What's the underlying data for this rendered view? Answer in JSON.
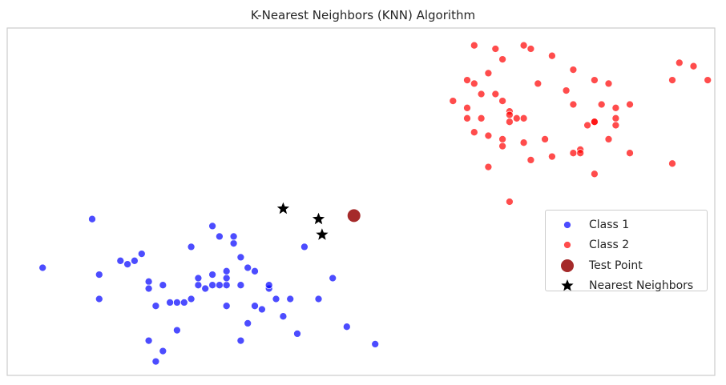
{
  "chart_data": {
    "type": "scatter",
    "title": "K-Nearest Neighbors (KNN) Algorithm",
    "xlabel": "",
    "ylabel": "",
    "xlim": [
      0,
      10
    ],
    "ylim": [
      0,
      10
    ],
    "grid": false,
    "legend_placement": "center-right",
    "series": [
      {
        "name": "Class 1",
        "color": "#0000ff",
        "marker": "circle",
        "points": [
          [
            0.5,
            3.1
          ],
          [
            1.2,
            4.5
          ],
          [
            1.3,
            2.9
          ],
          [
            1.3,
            2.2
          ],
          [
            1.7,
            3.2
          ],
          [
            1.8,
            3.3
          ],
          [
            1.9,
            3.5
          ],
          [
            1.6,
            3.3
          ],
          [
            2.0,
            2.7
          ],
          [
            2.0,
            2.5
          ],
          [
            2.1,
            2.0
          ],
          [
            2.3,
            2.1
          ],
          [
            2.4,
            2.1
          ],
          [
            2.5,
            2.1
          ],
          [
            2.6,
            3.7
          ],
          [
            2.6,
            2.2
          ],
          [
            2.7,
            2.6
          ],
          [
            2.8,
            2.5
          ],
          [
            2.9,
            2.6
          ],
          [
            2.9,
            4.3
          ],
          [
            3.0,
            2.6
          ],
          [
            3.1,
            2.6
          ],
          [
            3.2,
            3.8
          ],
          [
            3.3,
            3.4
          ],
          [
            3.4,
            3.1
          ],
          [
            3.3,
            2.6
          ],
          [
            3.1,
            2.0
          ],
          [
            3.2,
            4.0
          ],
          [
            3.4,
            1.5
          ],
          [
            3.5,
            2.0
          ],
          [
            3.6,
            1.9
          ],
          [
            3.7,
            2.5
          ],
          [
            2.4,
            1.3
          ],
          [
            2.0,
            1.0
          ],
          [
            2.2,
            0.7
          ],
          [
            2.1,
            0.4
          ],
          [
            3.3,
            1.0
          ],
          [
            3.5,
            3.0
          ],
          [
            3.8,
            2.2
          ],
          [
            4.0,
            2.2
          ],
          [
            3.9,
            1.7
          ],
          [
            4.2,
            3.7
          ],
          [
            4.1,
            1.2
          ],
          [
            4.4,
            2.2
          ],
          [
            4.6,
            2.8
          ],
          [
            4.8,
            1.4
          ],
          [
            5.2,
            0.9
          ],
          [
            2.7,
            2.8
          ],
          [
            3.1,
            2.8
          ],
          [
            2.9,
            2.9
          ],
          [
            3.1,
            3.0
          ],
          [
            3.7,
            2.6
          ],
          [
            3.0,
            4.0
          ],
          [
            2.2,
            2.6
          ]
        ]
      },
      {
        "name": "Class 2",
        "color": "#ff0000",
        "marker": "circle",
        "points": [
          [
            6.6,
            9.5
          ],
          [
            6.9,
            9.4
          ],
          [
            7.3,
            9.5
          ],
          [
            7.4,
            9.4
          ],
          [
            7.7,
            9.2
          ],
          [
            7.0,
            9.1
          ],
          [
            6.8,
            8.7
          ],
          [
            6.5,
            8.5
          ],
          [
            6.6,
            8.4
          ],
          [
            6.9,
            8.1
          ],
          [
            6.7,
            8.1
          ],
          [
            6.3,
            7.9
          ],
          [
            6.5,
            7.7
          ],
          [
            6.7,
            7.4
          ],
          [
            7.0,
            7.9
          ],
          [
            7.1,
            7.6
          ],
          [
            7.3,
            7.4
          ],
          [
            7.5,
            8.4
          ],
          [
            7.9,
            8.2
          ],
          [
            8.0,
            8.8
          ],
          [
            8.3,
            8.5
          ],
          [
            8.5,
            8.4
          ],
          [
            8.4,
            7.8
          ],
          [
            8.6,
            7.7
          ],
          [
            8.8,
            7.8
          ],
          [
            8.6,
            7.4
          ],
          [
            8.3,
            7.3
          ],
          [
            8.2,
            7.2
          ],
          [
            8.6,
            7.2
          ],
          [
            8.5,
            6.8
          ],
          [
            8.1,
            6.5
          ],
          [
            7.6,
            6.8
          ],
          [
            7.3,
            6.7
          ],
          [
            7.1,
            7.3
          ],
          [
            7.0,
            6.8
          ],
          [
            6.6,
            7.0
          ],
          [
            6.5,
            7.4
          ],
          [
            7.0,
            6.6
          ],
          [
            7.4,
            6.2
          ],
          [
            7.7,
            6.3
          ],
          [
            8.0,
            6.4
          ],
          [
            8.1,
            6.4
          ],
          [
            8.3,
            5.8
          ],
          [
            8.8,
            6.4
          ],
          [
            6.8,
            6.0
          ],
          [
            7.1,
            5.0
          ],
          [
            9.4,
            6.1
          ],
          [
            9.5,
            9.0
          ],
          [
            9.4,
            8.5
          ],
          [
            9.7,
            8.9
          ],
          [
            9.9,
            8.5
          ],
          [
            7.2,
            7.4
          ],
          [
            7.1,
            7.5
          ],
          [
            8.0,
            7.8
          ],
          [
            8.3,
            7.3
          ],
          [
            6.8,
            6.9
          ]
        ]
      },
      {
        "name": "Test Point",
        "color": "#a52a2a",
        "marker": "circle-large",
        "points": [
          [
            4.9,
            4.6
          ]
        ]
      },
      {
        "name": "Nearest Neighbors",
        "color": "#000000",
        "marker": "star",
        "points": [
          [
            3.9,
            4.8
          ],
          [
            4.4,
            4.5
          ],
          [
            4.45,
            4.05
          ]
        ]
      }
    ]
  }
}
